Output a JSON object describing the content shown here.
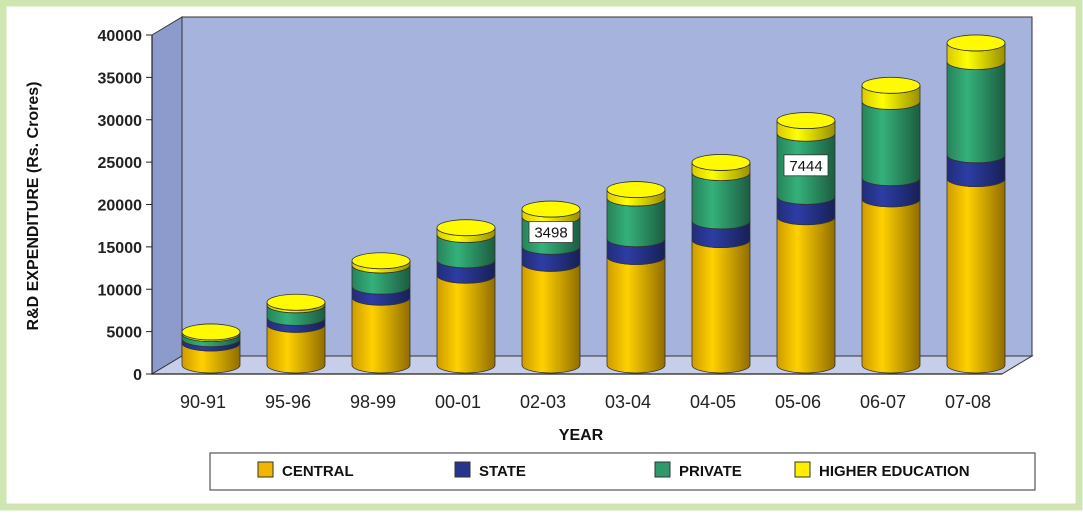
{
  "chart_data": {
    "type": "bar",
    "stacked": true,
    "three_d": true,
    "title": "",
    "xlabel": "YEAR",
    "ylabel": "R&D EXPENDITURE (Rs. Crores)",
    "ylim": [
      0,
      40000
    ],
    "yticks": [
      0,
      5000,
      10000,
      15000,
      20000,
      25000,
      30000,
      35000,
      40000
    ],
    "grid": false,
    "legend_position": "bottom",
    "categories": [
      "90-91",
      "95-96",
      "98-99",
      "00-01",
      "02-03",
      "03-04",
      "04-05",
      "05-06",
      "06-07",
      "07-08"
    ],
    "series": [
      {
        "name": "CENTRAL",
        "color": "#f2b600",
        "values": [
          2600,
          4800,
          8000,
          10600,
          12000,
          12800,
          14800,
          17500,
          19600,
          22000
        ]
      },
      {
        "name": "STATE",
        "color": "#27358f",
        "values": [
          500,
          800,
          1300,
          1800,
          2000,
          2100,
          2200,
          2400,
          2500,
          2800
        ]
      },
      {
        "name": "PRIVATE",
        "color": "#2e9a6a",
        "values": [
          600,
          1500,
          2500,
          3000,
          3498,
          4800,
          5700,
          7444,
          9000,
          11000
        ]
      },
      {
        "name": "HIGHER EDUCATION",
        "color": "#ffee00",
        "values": [
          200,
          300,
          500,
          800,
          900,
          1000,
          1200,
          1500,
          1900,
          2200
        ]
      }
    ],
    "annotations": [
      {
        "category": "02-03",
        "series": "PRIVATE",
        "text": "3498"
      },
      {
        "category": "05-06",
        "series": "PRIVATE",
        "text": "7444"
      }
    ],
    "colors": {
      "panel_border": "#cfe6b0",
      "plot_back": "#a6b3dc",
      "plot_side": "#8d9bcc",
      "plot_floor": "#c6cee9"
    }
  }
}
